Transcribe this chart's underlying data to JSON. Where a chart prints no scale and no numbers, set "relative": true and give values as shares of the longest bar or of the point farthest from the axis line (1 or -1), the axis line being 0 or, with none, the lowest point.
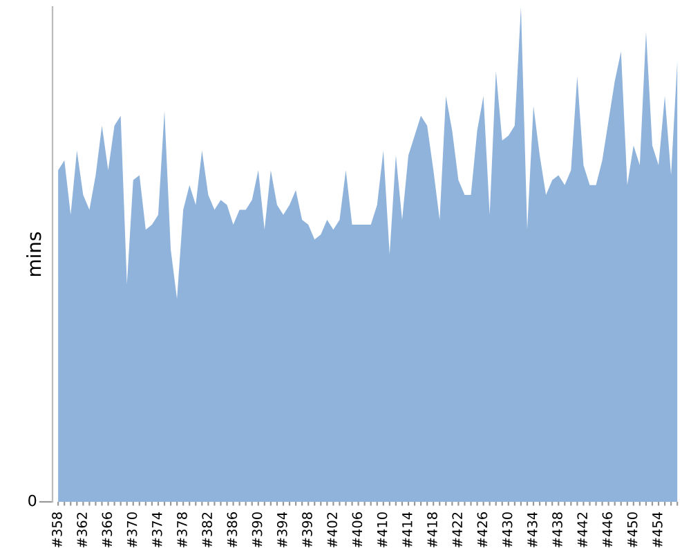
{
  "chart_data": {
    "type": "area",
    "relative": true,
    "ylabel": "mins",
    "annotations": [
      "0"
    ],
    "color": "#8fb3db",
    "grid": false,
    "legend": false,
    "categories": [
      "#358",
      null,
      null,
      null,
      "#362",
      null,
      null,
      null,
      "#366",
      null,
      null,
      null,
      "#370",
      null,
      null,
      null,
      "#374",
      null,
      null,
      null,
      "#378",
      null,
      null,
      null,
      "#382",
      null,
      null,
      null,
      "#386",
      null,
      null,
      null,
      "#390",
      null,
      null,
      null,
      "#394",
      null,
      null,
      null,
      "#398",
      null,
      null,
      null,
      "#402",
      null,
      null,
      null,
      "#406",
      null,
      null,
      null,
      "#410",
      null,
      null,
      null,
      "#414",
      null,
      null,
      null,
      "#418",
      null,
      null,
      null,
      "#422",
      null,
      null,
      null,
      "#426",
      null,
      null,
      null,
      "#430",
      null,
      null,
      null,
      "#434",
      null,
      null,
      null,
      "#438",
      null,
      null,
      null,
      "#442",
      null,
      null,
      null,
      "#446",
      null,
      null,
      null,
      "#450",
      null,
      null,
      null,
      "#454",
      null,
      null,
      null
    ],
    "values": [
      0.67,
      0.69,
      0.58,
      0.71,
      0.62,
      0.59,
      0.66,
      0.76,
      0.67,
      0.76,
      0.78,
      0.44,
      0.65,
      0.66,
      0.55,
      0.56,
      0.58,
      0.79,
      0.51,
      0.41,
      0.59,
      0.64,
      0.6,
      0.71,
      0.62,
      0.59,
      0.61,
      0.6,
      0.56,
      0.59,
      0.59,
      0.61,
      0.67,
      0.55,
      0.67,
      0.6,
      0.58,
      0.6,
      0.63,
      0.57,
      0.56,
      0.53,
      0.54,
      0.57,
      0.55,
      0.57,
      0.67,
      0.56,
      0.56,
      0.56,
      0.56,
      0.6,
      0.71,
      0.5,
      0.7,
      0.57,
      0.7,
      0.74,
      0.78,
      0.76,
      0.67,
      0.57,
      0.82,
      0.75,
      0.65,
      0.62,
      0.62,
      0.75,
      0.82,
      0.58,
      0.87,
      0.73,
      0.74,
      0.76,
      1,
      0.55,
      0.8,
      0.7,
      0.62,
      0.65,
      0.66,
      0.64,
      0.67,
      0.86,
      0.68,
      0.64,
      0.64,
      0.69,
      0.77,
      0.85,
      0.91,
      0.64,
      0.72,
      0.68,
      0.95,
      0.72,
      0.68,
      0.82,
      0.66,
      0.89
    ]
  }
}
